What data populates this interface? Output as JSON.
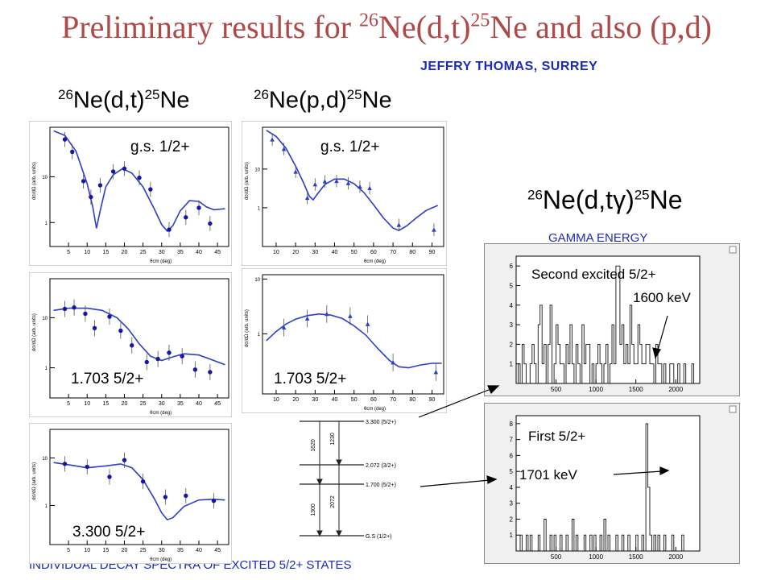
{
  "header": {
    "title_main": "Preliminary results for ",
    "title_sup1": "26",
    "title_mid": "Ne(d,t)",
    "title_sup2": "25",
    "title_end": "Ne and also (p,d)",
    "author": "JEFFRY THOMAS, SURREY"
  },
  "reactions": {
    "dt": {
      "sup_a": "26",
      "text_a": "Ne(d,t)",
      "sup_b": "25",
      "text_b": "Ne"
    },
    "pd": {
      "sup_a": "26",
      "text_a": "Ne(p,d)",
      "sup_b": "25",
      "text_b": "Ne"
    },
    "dtg": {
      "sup_a": "26",
      "text_a": "Ne(d,t",
      "gamma": "γ",
      "text_c": ")",
      "sup_b": "25",
      "text_b": "Ne"
    }
  },
  "notes": {
    "gamma_energy": "GAMMA ENERGY",
    "footer": "INDIVIDUAL DECAY SPECTRA OF EXCITED 5/2+ STATES"
  },
  "colors": {
    "title": "#b04848",
    "accent_blue": "#1a2bb8",
    "theory_curve": "#2a3ec8",
    "dt_point": "#1515a8"
  },
  "chart_data": [
    {
      "type": "scatter",
      "id": "dt_gs",
      "state_label": "g.s. 1/2+",
      "xlabel": "θcm (deg)",
      "ylabel": "dσ/dΩ (arb. units)",
      "xlim": [
        0,
        48
      ],
      "ylim_log": [
        0.3,
        120
      ],
      "xticks": [
        5,
        10,
        15,
        20,
        25,
        30,
        35,
        40,
        45
      ],
      "yticks": [
        "1",
        "10"
      ],
      "points": [
        [
          4,
          65
        ],
        [
          6,
          35
        ],
        [
          9,
          8
        ],
        [
          11,
          3.6
        ],
        [
          13.5,
          6.5
        ],
        [
          17,
          13
        ],
        [
          20,
          15
        ],
        [
          24,
          9.5
        ],
        [
          27,
          5.3
        ],
        [
          32,
          0.7
        ],
        [
          36.5,
          1.3
        ],
        [
          40,
          2.1
        ],
        [
          43,
          0.95
        ]
      ],
      "curve": [
        [
          1,
          100
        ],
        [
          4,
          80
        ],
        [
          7,
          36
        ],
        [
          10,
          7
        ],
        [
          11.5,
          2.2
        ],
        [
          12.5,
          0.75
        ],
        [
          13.5,
          1.8
        ],
        [
          15,
          6
        ],
        [
          17,
          11
        ],
        [
          19.5,
          15
        ],
        [
          22,
          12
        ],
        [
          25,
          6
        ],
        [
          28,
          2
        ],
        [
          30,
          0.9
        ],
        [
          31.5,
          0.65
        ],
        [
          33,
          0.85
        ],
        [
          35,
          1.8
        ],
        [
          37.5,
          3
        ],
        [
          40,
          2.9
        ],
        [
          42,
          2.2
        ],
        [
          44,
          1.9
        ],
        [
          47,
          2
        ]
      ]
    },
    {
      "type": "scatter",
      "id": "pd_gs",
      "state_label": "g.s. 1/2+",
      "xlabel": "θcm (deg)",
      "ylabel": "dσ/dΩ (arb. units)",
      "xlim": [
        3,
        96
      ],
      "ylim_log": [
        0.1,
        120
      ],
      "xticks": [
        10,
        20,
        30,
        40,
        50,
        60,
        70,
        80,
        90
      ],
      "yticks": [
        "1",
        "10"
      ],
      "points": [
        [
          8,
          58
        ],
        [
          14,
          33
        ],
        [
          20,
          8.5
        ],
        [
          26,
          1.8
        ],
        [
          30,
          4
        ],
        [
          35,
          4.8
        ],
        [
          41,
          4.9
        ],
        [
          47,
          4.3
        ],
        [
          53,
          3.5
        ],
        [
          58,
          3.2
        ],
        [
          73,
          0.36
        ],
        [
          91,
          0.27
        ]
      ],
      "curve": [
        [
          5,
          100
        ],
        [
          10,
          70
        ],
        [
          15,
          35
        ],
        [
          20,
          12
        ],
        [
          24,
          4.5
        ],
        [
          27,
          2
        ],
        [
          29,
          1.6
        ],
        [
          31,
          2.2
        ],
        [
          35,
          4
        ],
        [
          40,
          5.5
        ],
        [
          45,
          5.5
        ],
        [
          50,
          4.2
        ],
        [
          55,
          2.5
        ],
        [
          60,
          1.2
        ],
        [
          65,
          0.55
        ],
        [
          70,
          0.3
        ],
        [
          73,
          0.26
        ],
        [
          77,
          0.34
        ],
        [
          82,
          0.55
        ],
        [
          87,
          0.85
        ],
        [
          93,
          1.15
        ]
      ]
    },
    {
      "type": "scatter",
      "id": "dt_1703",
      "state_label": "1.703 5/2+",
      "xlabel": "θcm (deg)",
      "ylabel": "dσ/dΩ (arb. units)",
      "xlim": [
        0,
        48
      ],
      "ylim_log": [
        0.25,
        60
      ],
      "xticks": [
        5,
        10,
        15,
        20,
        25,
        30,
        35,
        40,
        45
      ],
      "yticks": [
        "1",
        "10"
      ],
      "points": [
        [
          4,
          15
        ],
        [
          6.5,
          16
        ],
        [
          9.5,
          12
        ],
        [
          12,
          6.2
        ],
        [
          16,
          10.5
        ],
        [
          19,
          5.5
        ],
        [
          22,
          2.8
        ],
        [
          26,
          1.3
        ],
        [
          29,
          1.5
        ],
        [
          32,
          2
        ],
        [
          35.5,
          1.7
        ],
        [
          39,
          0.92
        ],
        [
          43,
          0.82
        ]
      ],
      "curve": [
        [
          1,
          14
        ],
        [
          5,
          15.5
        ],
        [
          10,
          15.5
        ],
        [
          14,
          14
        ],
        [
          18,
          10
        ],
        [
          21,
          6
        ],
        [
          24,
          3
        ],
        [
          27,
          1.7
        ],
        [
          30,
          1.4
        ],
        [
          33,
          1.65
        ],
        [
          36,
          1.9
        ],
        [
          40,
          1.8
        ],
        [
          44,
          1.4
        ],
        [
          47,
          1.15
        ]
      ]
    },
    {
      "type": "scatter",
      "id": "pd_1703",
      "state_label": "1.703 5/2+",
      "xlabel": "θcm (deg)",
      "ylabel": "dσ/dΩ (arb. units)",
      "xlim": [
        3,
        96
      ],
      "ylim_log": [
        0.08,
        12
      ],
      "xticks": [
        10,
        20,
        30,
        40,
        50,
        60,
        70,
        80,
        90
      ],
      "yticks": [
        "1",
        "10"
      ],
      "points": [
        [
          14,
          1.3
        ],
        [
          26,
          1.9
        ],
        [
          36,
          2.3
        ],
        [
          48,
          2.1
        ],
        [
          57,
          1.5
        ],
        [
          70,
          0.3
        ],
        [
          92,
          0.2
        ]
      ],
      "curve": [
        [
          5,
          0.75
        ],
        [
          10,
          1.1
        ],
        [
          15,
          1.5
        ],
        [
          20,
          1.85
        ],
        [
          26,
          2.15
        ],
        [
          32,
          2.3
        ],
        [
          38,
          2.2
        ],
        [
          44,
          1.9
        ],
        [
          50,
          1.4
        ],
        [
          56,
          0.95
        ],
        [
          62,
          0.55
        ],
        [
          68,
          0.33
        ],
        [
          73,
          0.25
        ],
        [
          78,
          0.24
        ],
        [
          84,
          0.27
        ],
        [
          90,
          0.29
        ],
        [
          95,
          0.29
        ]
      ]
    },
    {
      "type": "scatter",
      "id": "dt_3300",
      "state_label": "3.300 5/2+",
      "xlabel": "θcm (deg)",
      "ylabel": "dσ/dΩ (arb. units)",
      "xlim": [
        0,
        48
      ],
      "ylim_log": [
        0.15,
        40
      ],
      "xticks": [
        5,
        10,
        15,
        20,
        25,
        30,
        35,
        40,
        45
      ],
      "yticks": [
        "1",
        "10"
      ],
      "points": [
        [
          4,
          7.5
        ],
        [
          10,
          6.5
        ],
        [
          16,
          4
        ],
        [
          20,
          9
        ],
        [
          25,
          3.2
        ],
        [
          31,
          1.5
        ],
        [
          36.5,
          1.6
        ],
        [
          44,
          1.25
        ]
      ],
      "curve": [
        [
          1,
          8
        ],
        [
          5,
          7.2
        ],
        [
          10,
          6.2
        ],
        [
          15,
          6.8
        ],
        [
          19,
          7.5
        ],
        [
          22,
          6.2
        ],
        [
          25,
          3.5
        ],
        [
          28,
          1.4
        ],
        [
          30,
          0.7
        ],
        [
          31.5,
          0.5
        ],
        [
          33,
          0.55
        ],
        [
          36,
          0.95
        ],
        [
          40,
          1.3
        ],
        [
          44,
          1.35
        ],
        [
          47,
          1.3
        ]
      ]
    },
    {
      "type": "histogram",
      "id": "gamma_second",
      "title": "Second excited 5/2+",
      "annotation": "1600 keV",
      "xlim": [
        0,
        2300
      ],
      "ylim": [
        0,
        6.5
      ],
      "xticks": [
        500,
        1000,
        1500,
        2000
      ],
      "yticks": [
        1,
        2,
        3,
        4,
        5,
        6
      ],
      "bin_width": 25,
      "counts": [
        0,
        1,
        0,
        2,
        1,
        0,
        0,
        1,
        2,
        1,
        0,
        3,
        4,
        1,
        2,
        0,
        2,
        4,
        0,
        1,
        3,
        2,
        1,
        1,
        0,
        2,
        1,
        3,
        1,
        0,
        2,
        1,
        0,
        3,
        1,
        2,
        2,
        0,
        1,
        0,
        1,
        2,
        1,
        0,
        1,
        2,
        0,
        1,
        3,
        1,
        6,
        6,
        2,
        3,
        1,
        2,
        1,
        4,
        2,
        1,
        1,
        3,
        2,
        1,
        1,
        2,
        2,
        1,
        1,
        0,
        2,
        1,
        1,
        0,
        1,
        0,
        0,
        1,
        1,
        0,
        0,
        1,
        0,
        0,
        1,
        0,
        0,
        0,
        1,
        0
      ]
    },
    {
      "type": "histogram",
      "id": "gamma_first",
      "title": "First 5/2+",
      "annotation": "1701 keV",
      "xlim": [
        0,
        2300
      ],
      "ylim": [
        0,
        8.5
      ],
      "xticks": [
        500,
        1000,
        1500,
        2000
      ],
      "yticks": [
        1,
        2,
        3,
        4,
        5,
        6,
        7,
        8
      ],
      "bin_width": 25,
      "counts": [
        0,
        0,
        1,
        0,
        0,
        1,
        0,
        1,
        0,
        0,
        0,
        1,
        0,
        0,
        2,
        0,
        0,
        1,
        0,
        1,
        0,
        0,
        1,
        0,
        0,
        1,
        0,
        0,
        2,
        0,
        1,
        0,
        0,
        0,
        1,
        0,
        0,
        1,
        0,
        1,
        0,
        0,
        1,
        0,
        2,
        0,
        1,
        0,
        0,
        0,
        1,
        0,
        0,
        1,
        0,
        0,
        1,
        0,
        0,
        0,
        1,
        0,
        0,
        1,
        0,
        8,
        4,
        1,
        0,
        1,
        0,
        1,
        0,
        0,
        1,
        0,
        0,
        0,
        1,
        0,
        0,
        0,
        0,
        1,
        0,
        0,
        0,
        0,
        0,
        0
      ]
    },
    {
      "type": "table",
      "id": "level_scheme",
      "levels": [
        "3.300 (5/2+)",
        "2.072 (3/2+)",
        "1.700 (5/2+)",
        "G.S (1/2+)"
      ],
      "transitions": [
        "1620",
        "1230",
        "1300",
        "2072"
      ]
    }
  ]
}
